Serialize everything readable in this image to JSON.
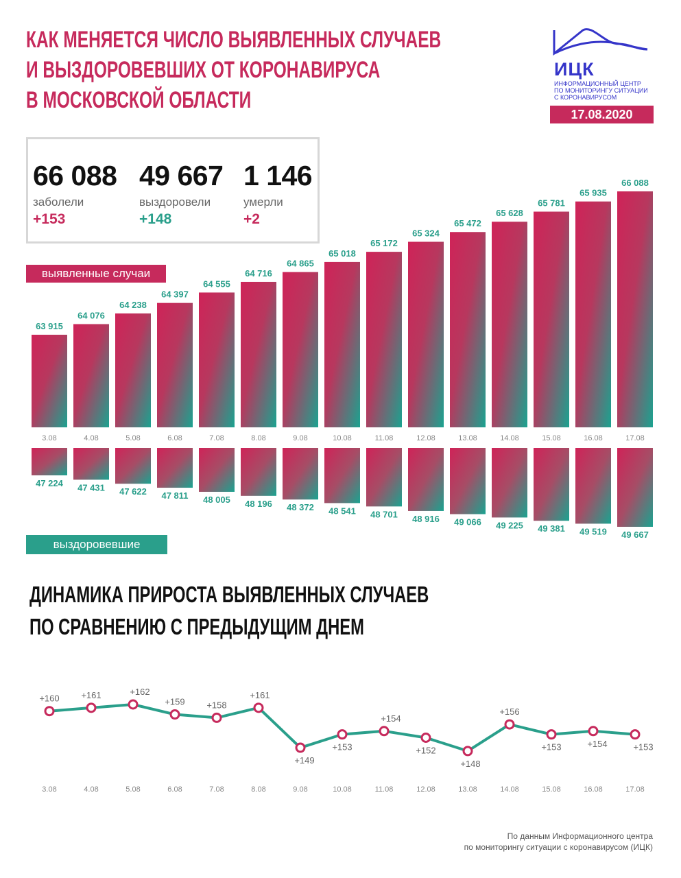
{
  "header": {
    "title_lines": [
      "КАК МЕНЯЕТСЯ ЧИСЛО ВЫЯВЛЕННЫХ СЛУЧАЕВ",
      "И ВЫЗДОРОВЕВШИХ ОТ КОРОНАВИРУСА",
      "В МОСКОВСКОЙ ОБЛАСТИ"
    ],
    "logo_name": "ИЦК",
    "logo_sub_lines": [
      "ИНФОРМАЦИОННЫЙ ЦЕНТР",
      "ПО МОНИТОРИНГУ СИТУАЦИИ",
      "С КОРОНАВИРУСОМ"
    ],
    "date": "17.08.2020"
  },
  "summary": {
    "infected": {
      "value": "66 088",
      "label": "заболели",
      "delta": "+153"
    },
    "recovered": {
      "value": "49 667",
      "label": "выздоровели",
      "delta": "+148"
    },
    "died": {
      "value": "1 146",
      "label": "умерли",
      "delta": "+2"
    }
  },
  "tags": {
    "cases": "выявленные случаи",
    "recovered": "выздоровевшие"
  },
  "section2_title_lines": [
    "ДИНАМИКА ПРИРОСТА ВЫЯВЛЕННЫХ СЛУЧАЕВ",
    "ПО СРАВНЕНИЮ С ПРЕДЫДУЩИМ ДНЕМ"
  ],
  "footer_lines": [
    "По данным Информационного центра",
    "по мониторингу ситуации с коронавирусом (ИЦК)"
  ],
  "colors": {
    "accent_red": "#c62a5c",
    "accent_green": "#2a9f8b",
    "logo_blue": "#3535c9"
  },
  "chart_data": [
    {
      "type": "bar",
      "categories": [
        "3.08",
        "4.08",
        "5.08",
        "6.08",
        "7.08",
        "8.08",
        "9.08",
        "10.08",
        "11.08",
        "12.08",
        "13.08",
        "14.08",
        "15.08",
        "16.08",
        "17.08"
      ],
      "series": [
        {
          "name": "выявленные случаи",
          "values": [
            63915,
            64076,
            64238,
            64397,
            64555,
            64716,
            64865,
            65018,
            65172,
            65324,
            65472,
            65628,
            65781,
            65935,
            66088
          ],
          "labels": [
            "63 915",
            "64 076",
            "64 238",
            "64 397",
            "64 555",
            "64 716",
            "64 865",
            "65 018",
            "65 172",
            "65 324",
            "65 472",
            "65 628",
            "65 781",
            "65 935",
            "66 088"
          ]
        },
        {
          "name": "выздоровевшие",
          "values": [
            47224,
            47431,
            47622,
            47811,
            48005,
            48196,
            48372,
            48541,
            48701,
            48916,
            49066,
            49225,
            49381,
            49519,
            49667
          ],
          "labels": [
            "47 224",
            "47 431",
            "47 622",
            "47 811",
            "48 005",
            "48 196",
            "48 372",
            "48 541",
            "48 701",
            "48 916",
            "49 066",
            "49 225",
            "49 381",
            "49 519",
            "49 667"
          ]
        }
      ]
    },
    {
      "type": "line",
      "categories": [
        "3.08",
        "4.08",
        "5.08",
        "6.08",
        "7.08",
        "8.08",
        "9.08",
        "10.08",
        "11.08",
        "12.08",
        "13.08",
        "14.08",
        "15.08",
        "16.08",
        "17.08"
      ],
      "series": [
        {
          "values": [
            160,
            161,
            162,
            159,
            158,
            161,
            149,
            153,
            154,
            152,
            148,
            156,
            153,
            154,
            153
          ],
          "labels": [
            "+160",
            "+161",
            "+162",
            "+159",
            "+158",
            "+161",
            "+149",
            "+153",
            "+154",
            "+152",
            "+148",
            "+156",
            "+153",
            "+154",
            "+153"
          ]
        }
      ]
    }
  ]
}
